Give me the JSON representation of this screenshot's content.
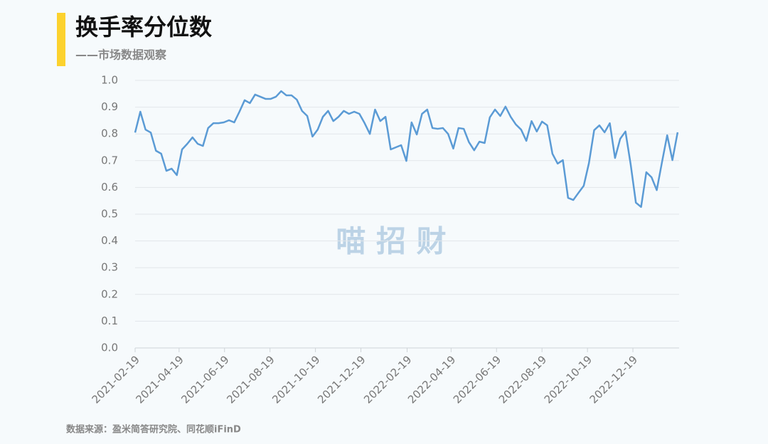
{
  "chart_data": {
    "type": "line",
    "title": "换手率分位数",
    "subtitle": "——市场数据观察",
    "watermark": "喵 招 财",
    "source": "数据来源：盈米简答研究院、同花顺iFinD",
    "x": [
      "2021-02-19",
      "2021-02-26",
      "2021-03-05",
      "2021-03-12",
      "2021-03-19",
      "2021-03-26",
      "2021-04-02",
      "2021-04-09",
      "2021-04-16",
      "2021-04-23",
      "2021-04-30",
      "2021-05-07",
      "2021-05-14",
      "2021-05-21",
      "2021-05-28",
      "2021-06-04",
      "2021-06-11",
      "2021-06-18",
      "2021-06-25",
      "2021-07-02",
      "2021-07-09",
      "2021-07-16",
      "2021-07-23",
      "2021-07-30",
      "2021-08-06",
      "2021-08-13",
      "2021-08-20",
      "2021-08-27",
      "2021-09-03",
      "2021-09-10",
      "2021-09-17",
      "2021-09-24",
      "2021-10-01",
      "2021-10-08",
      "2021-10-15",
      "2021-10-22",
      "2021-10-29",
      "2021-11-05",
      "2021-11-12",
      "2021-11-19",
      "2021-11-26",
      "2021-12-03",
      "2021-12-10",
      "2021-12-17",
      "2021-12-24",
      "2021-12-31",
      "2022-01-07",
      "2022-01-14",
      "2022-01-21",
      "2022-01-28",
      "2022-02-04",
      "2022-02-11",
      "2022-02-18",
      "2022-02-25",
      "2022-03-04",
      "2022-03-11",
      "2022-03-18",
      "2022-03-25",
      "2022-04-01",
      "2022-04-08",
      "2022-04-15",
      "2022-04-22",
      "2022-04-29",
      "2022-05-06",
      "2022-05-13",
      "2022-05-20",
      "2022-05-27",
      "2022-06-03",
      "2022-06-10",
      "2022-06-17",
      "2022-06-24",
      "2022-07-01",
      "2022-07-08",
      "2022-07-15",
      "2022-07-22",
      "2022-07-29",
      "2022-08-05",
      "2022-08-12",
      "2022-08-19",
      "2022-08-26",
      "2022-09-02",
      "2022-09-09",
      "2022-09-16",
      "2022-09-23",
      "2022-09-30",
      "2022-10-07",
      "2022-10-14",
      "2022-10-21",
      "2022-10-28",
      "2022-11-04",
      "2022-11-11",
      "2022-11-18",
      "2022-11-25",
      "2022-12-02",
      "2022-12-09",
      "2022-12-16",
      "2022-12-23",
      "2022-12-30",
      "2023-01-06",
      "2023-01-13",
      "2023-01-20",
      "2023-01-27",
      "2023-02-03",
      "2023-02-10",
      "2023-02-17"
    ],
    "series": [
      {
        "color": "#5b9bd5",
        "values": [
          0.805,
          0.883,
          0.816,
          0.805,
          0.737,
          0.726,
          0.662,
          0.67,
          0.646,
          0.742,
          0.763,
          0.787,
          0.763,
          0.755,
          0.822,
          0.84,
          0.84,
          0.843,
          0.851,
          0.843,
          0.883,
          0.926,
          0.915,
          0.947,
          0.939,
          0.931,
          0.931,
          0.939,
          0.96,
          0.944,
          0.944,
          0.928,
          0.886,
          0.867,
          0.79,
          0.816,
          0.864,
          0.886,
          0.848,
          0.864,
          0.886,
          0.875,
          0.883,
          0.875,
          0.84,
          0.8,
          0.891,
          0.848,
          0.864,
          0.742,
          0.75,
          0.758,
          0.699,
          0.843,
          0.798,
          0.875,
          0.891,
          0.822,
          0.819,
          0.822,
          0.8,
          0.745,
          0.822,
          0.819,
          0.769,
          0.739,
          0.771,
          0.766,
          0.862,
          0.891,
          0.867,
          0.902,
          0.864,
          0.835,
          0.816,
          0.774,
          0.848,
          0.809,
          0.846,
          0.832,
          0.726,
          0.689,
          0.702,
          0.561,
          0.553,
          0.58,
          0.606,
          0.691,
          0.814,
          0.832,
          0.806,
          0.84,
          0.71,
          0.782,
          0.809,
          0.686,
          0.543,
          0.527,
          0.657,
          0.638,
          0.59,
          0.694,
          0.795,
          0.702,
          0.806
        ]
      }
    ],
    "xlim": [
      "2021-02-19",
      "2023-02-19"
    ],
    "xticks": [
      "2021-02-19",
      "2021-04-19",
      "2021-06-19",
      "2021-08-19",
      "2021-10-19",
      "2021-12-19",
      "2022-02-19",
      "2022-04-19",
      "2022-06-19",
      "2022-08-19",
      "2022-10-19",
      "2022-12-19"
    ],
    "ylim": [
      0,
      1
    ],
    "yticks": [
      {
        "value": 0,
        "label": "0.0"
      },
      0.1,
      0.2,
      0.3,
      0.4,
      0.5,
      0.6,
      0.7,
      0.8,
      0.9,
      {
        "value": 1,
        "label": "1.0"
      }
    ],
    "grid": true
  }
}
